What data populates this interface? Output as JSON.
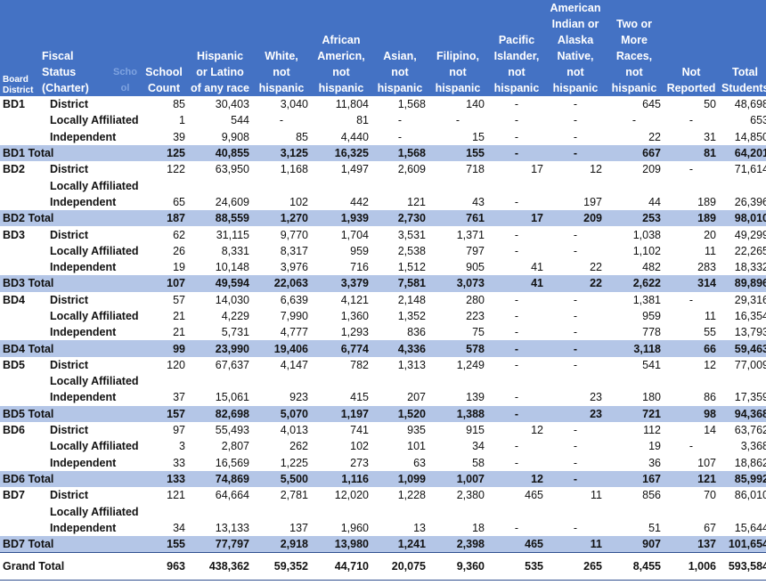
{
  "headers": {
    "board_district": "Board District",
    "fiscal_status": "Fiscal Status (Charter)",
    "faint_label": "Scho ol",
    "school_count": "School Count",
    "hispanic": "Hispanic or Latino of any race",
    "white": "White, not hispanic",
    "african": "African Americn, not hispanic",
    "asian": "Asian, not hispanic",
    "filipino": "Filipino, not hispanic",
    "pacific": "Pacific Islander, not hispanic",
    "american_indian": "American Indian or Alaska Native, not hispanic",
    "two_or_more": "Two or More Races, not hispanic",
    "not_reported": "Not Reported",
    "total_students": "Total Students"
  },
  "rows": [
    {
      "type": "detail",
      "bd": "BD1",
      "status": "District",
      "cells": [
        "85",
        "30,403",
        "3,040",
        "11,804",
        "1,568",
        "140",
        "-",
        "-",
        "645",
        "50",
        "48,698"
      ]
    },
    {
      "type": "detail",
      "bd": "",
      "status": "Locally Affiliated",
      "cells": [
        "1",
        "544",
        "-",
        "81",
        "-",
        "-",
        "-",
        "-",
        "-",
        "-",
        "653"
      ]
    },
    {
      "type": "detail",
      "bd": "",
      "status": "Independent",
      "cells": [
        "39",
        "9,908",
        "85",
        "4,440",
        "-",
        "15",
        "-",
        "-",
        "22",
        "31",
        "14,850"
      ]
    },
    {
      "type": "total",
      "bd": "BD1 Total",
      "status": "",
      "cells": [
        "125",
        "40,855",
        "3,125",
        "16,325",
        "1,568",
        "155",
        "-",
        "-",
        "667",
        "81",
        "64,201"
      ]
    },
    {
      "type": "detail",
      "bd": "BD2",
      "status": "District",
      "cells": [
        "122",
        "63,950",
        "1,168",
        "1,497",
        "2,609",
        "718",
        "17",
        "12",
        "209",
        "-",
        "71,614"
      ]
    },
    {
      "type": "detail",
      "bd": "",
      "status": "Locally Affiliated",
      "cells": [
        "",
        "",
        "",
        "",
        "",
        "",
        "",
        "",
        "",
        "",
        ""
      ]
    },
    {
      "type": "detail",
      "bd": "",
      "status": "Independent",
      "cells": [
        "65",
        "24,609",
        "102",
        "442",
        "121",
        "43",
        "-",
        "197",
        "44",
        "189",
        "26,396"
      ]
    },
    {
      "type": "total",
      "bd": "BD2 Total",
      "status": "",
      "cells": [
        "187",
        "88,559",
        "1,270",
        "1,939",
        "2,730",
        "761",
        "17",
        "209",
        "253",
        "189",
        "98,010"
      ]
    },
    {
      "type": "detail",
      "bd": "BD3",
      "status": "District",
      "cells": [
        "62",
        "31,115",
        "9,770",
        "1,704",
        "3,531",
        "1,371",
        "-",
        "-",
        "1,038",
        "20",
        "49,299"
      ]
    },
    {
      "type": "detail",
      "bd": "",
      "status": "Locally Affiliated",
      "cells": [
        "26",
        "8,331",
        "8,317",
        "959",
        "2,538",
        "797",
        "-",
        "-",
        "1,102",
        "11",
        "22,265"
      ]
    },
    {
      "type": "detail",
      "bd": "",
      "status": "Independent",
      "cells": [
        "19",
        "10,148",
        "3,976",
        "716",
        "1,512",
        "905",
        "41",
        "22",
        "482",
        "283",
        "18,332"
      ]
    },
    {
      "type": "total",
      "bd": "BD3 Total",
      "status": "",
      "cells": [
        "107",
        "49,594",
        "22,063",
        "3,379",
        "7,581",
        "3,073",
        "41",
        "22",
        "2,622",
        "314",
        "89,896"
      ]
    },
    {
      "type": "detail",
      "bd": "BD4",
      "status": "District",
      "cells": [
        "57",
        "14,030",
        "6,639",
        "4,121",
        "2,148",
        "280",
        "-",
        "-",
        "1,381",
        "-",
        "29,316"
      ]
    },
    {
      "type": "detail",
      "bd": "",
      "status": "Locally Affiliated",
      "cells": [
        "21",
        "4,229",
        "7,990",
        "1,360",
        "1,352",
        "223",
        "-",
        "-",
        "959",
        "11",
        "16,354"
      ]
    },
    {
      "type": "detail",
      "bd": "",
      "status": "Independent",
      "cells": [
        "21",
        "5,731",
        "4,777",
        "1,293",
        "836",
        "75",
        "-",
        "-",
        "778",
        "55",
        "13,793"
      ]
    },
    {
      "type": "total",
      "bd": "BD4 Total",
      "status": "",
      "cells": [
        "99",
        "23,990",
        "19,406",
        "6,774",
        "4,336",
        "578",
        "-",
        "-",
        "3,118",
        "66",
        "59,463"
      ]
    },
    {
      "type": "detail",
      "bd": "BD5",
      "status": "District",
      "cells": [
        "120",
        "67,637",
        "4,147",
        "782",
        "1,313",
        "1,249",
        "-",
        "-",
        "541",
        "12",
        "77,009"
      ]
    },
    {
      "type": "detail",
      "bd": "",
      "status": "Locally Affiliated",
      "cells": [
        "",
        "",
        "",
        "",
        "",
        "",
        "",
        "",
        "",
        "",
        ""
      ]
    },
    {
      "type": "detail",
      "bd": "",
      "status": "Independent",
      "cells": [
        "37",
        "15,061",
        "923",
        "415",
        "207",
        "139",
        "-",
        "23",
        "180",
        "86",
        "17,359"
      ]
    },
    {
      "type": "total",
      "bd": "BD5 Total",
      "status": "",
      "cells": [
        "157",
        "82,698",
        "5,070",
        "1,197",
        "1,520",
        "1,388",
        "-",
        "23",
        "721",
        "98",
        "94,368"
      ]
    },
    {
      "type": "detail",
      "bd": "BD6",
      "status": "District",
      "cells": [
        "97",
        "55,493",
        "4,013",
        "741",
        "935",
        "915",
        "12",
        "-",
        "112",
        "14",
        "63,762"
      ]
    },
    {
      "type": "detail",
      "bd": "",
      "status": "Locally Affiliated",
      "cells": [
        "3",
        "2,807",
        "262",
        "102",
        "101",
        "34",
        "-",
        "-",
        "19",
        "-",
        "3,368"
      ]
    },
    {
      "type": "detail",
      "bd": "",
      "status": "Independent",
      "cells": [
        "33",
        "16,569",
        "1,225",
        "273",
        "63",
        "58",
        "-",
        "-",
        "36",
        "107",
        "18,862"
      ]
    },
    {
      "type": "total",
      "bd": "BD6 Total",
      "status": "",
      "cells": [
        "133",
        "74,869",
        "5,500",
        "1,116",
        "1,099",
        "1,007",
        "12",
        "-",
        "167",
        "121",
        "85,992"
      ]
    },
    {
      "type": "detail",
      "bd": "BD7",
      "status": "District",
      "cells": [
        "121",
        "64,664",
        "2,781",
        "12,020",
        "1,228",
        "2,380",
        "465",
        "11",
        "856",
        "70",
        "86,010"
      ]
    },
    {
      "type": "detail",
      "bd": "",
      "status": "Locally Affiliated",
      "cells": [
        "",
        "",
        "",
        "",
        "",
        "",
        "",
        "",
        "",
        "",
        ""
      ]
    },
    {
      "type": "detail",
      "bd": "",
      "status": "Independent",
      "cells": [
        "34",
        "13,133",
        "137",
        "1,960",
        "13",
        "18",
        "-",
        "-",
        "51",
        "67",
        "15,644"
      ]
    },
    {
      "type": "total",
      "bd": "BD7 Total",
      "status": "",
      "cells": [
        "155",
        "77,797",
        "2,918",
        "13,980",
        "1,241",
        "2,398",
        "465",
        "11",
        "907",
        "137",
        "101,654"
      ]
    },
    {
      "type": "grand",
      "bd": "Grand Total",
      "status": "",
      "cells": [
        "963",
        "438,362",
        "59,352",
        "44,710",
        "20,075",
        "9,360",
        "535",
        "265",
        "8,455",
        "1,006",
        "593,584"
      ]
    }
  ]
}
